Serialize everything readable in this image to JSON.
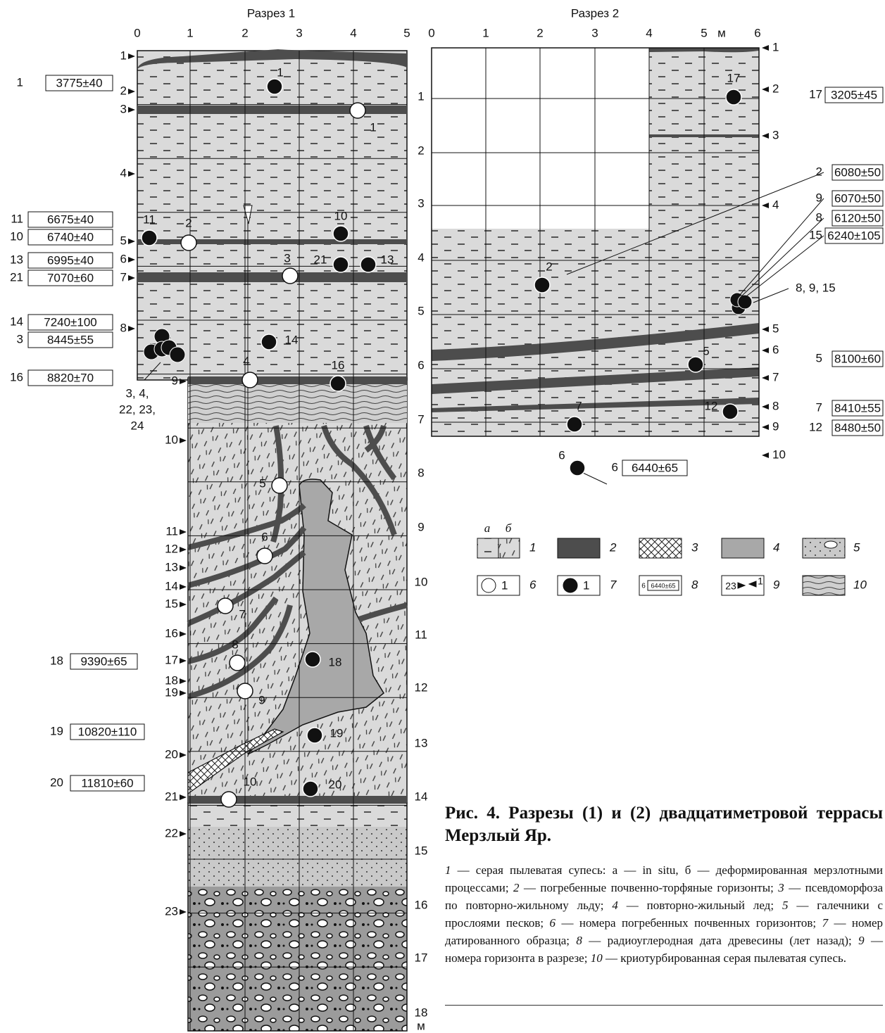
{
  "section1": {
    "title": "Разрез 1",
    "x_ticks": [
      "0",
      "1",
      "2",
      "3",
      "4",
      "5"
    ],
    "depth_ticks": [
      "1",
      "2",
      "3",
      "4",
      "5",
      "6",
      "7",
      "8",
      "9",
      "10",
      "11",
      "12",
      "13",
      "14",
      "15",
      "16",
      "17",
      "18"
    ],
    "unit": "м",
    "horizons": [
      "1",
      "2",
      "3",
      "4",
      "5",
      "6",
      "7",
      "8",
      "9",
      "10",
      "11",
      "12",
      "13",
      "14",
      "15",
      "16",
      "17",
      "18",
      "19",
      "20",
      "21",
      "22",
      "23"
    ],
    "soil_horizons": [
      "1",
      "2",
      "3",
      "4",
      "5",
      "6",
      "7",
      "8",
      "9",
      "10"
    ],
    "samples": [
      "1",
      "11",
      "10",
      "21",
      "13",
      "14",
      "16",
      "18",
      "19",
      "20"
    ],
    "dates": [
      {
        "sample": "1",
        "date": "3775±40"
      },
      {
        "sample": "11",
        "date": "6675±40"
      },
      {
        "sample": "10",
        "date": "6740±40"
      },
      {
        "sample": "13",
        "date": "6995±40"
      },
      {
        "sample": "21",
        "date": "7070±60"
      },
      {
        "sample": "14",
        "date": "7240±100"
      },
      {
        "sample": "3",
        "date": "8445±55"
      },
      {
        "sample": "16",
        "date": "8820±70"
      },
      {
        "sample": "18",
        "date": "9390±65"
      },
      {
        "sample": "19",
        "date": "10820±110"
      },
      {
        "sample": "20",
        "date": "11810±60"
      }
    ],
    "cluster_note": [
      "3, 4,",
      "22, 23,",
      "24"
    ]
  },
  "section2": {
    "title": "Разрез 2",
    "x_ticks": [
      "0",
      "1",
      "2",
      "3",
      "4",
      "5",
      "6"
    ],
    "unit": "м",
    "horizons": [
      "1",
      "2",
      "3",
      "4",
      "5",
      "6",
      "7",
      "8",
      "9",
      "10"
    ],
    "samples": [
      "17",
      "2",
      "5",
      "7",
      "12",
      "6"
    ],
    "dates": [
      {
        "sample": "17",
        "date": "3205±45"
      },
      {
        "sample": "2",
        "date": "6080±50"
      },
      {
        "sample": "9",
        "date": "6070±50"
      },
      {
        "sample": "8",
        "date": "6120±50"
      },
      {
        "sample": "15",
        "date": "6240±105"
      },
      {
        "sample": "5",
        "date": "8100±60"
      },
      {
        "sample": "7",
        "date": "8410±55"
      },
      {
        "sample": "12",
        "date": "8480±50"
      },
      {
        "sample": "6",
        "date": "6440±65"
      }
    ],
    "cluster_note": "8, 9, 15"
  },
  "legend": {
    "a": "а",
    "b": "б",
    "items": [
      "1",
      "2",
      "3",
      "4",
      "5",
      "6",
      "7",
      "8",
      "9",
      "10"
    ],
    "soil_example": "1",
    "sample_example": "1",
    "date_example_sample": "6",
    "date_example_date": "6440±65",
    "horizon_example_left": "23",
    "horizon_example_right": "1"
  },
  "caption": {
    "title": "Рис. 4. Разрезы (1) и (2) двадцатиметровой террасы Мерзлый Яр.",
    "items": [
      {
        "num": "1",
        "text": " — серая пылеватая супесь: а — in situ, б — деформированная мерзлотными процессами; "
      },
      {
        "num": "2",
        "text": " — погребенные почвенно-торфяные горизонты; "
      },
      {
        "num": "3",
        "text": " — псевдоморфоза по повторно-жильному льду; "
      },
      {
        "num": "4",
        "text": " — повторно-жильный лед; "
      },
      {
        "num": "5",
        "text": " — галечники с прослоями песков; "
      },
      {
        "num": "6",
        "text": " — номера погребенных почвенных горизонтов; "
      },
      {
        "num": "7",
        "text": " — номер датированного образца; "
      },
      {
        "num": "8",
        "text": " — радиоуглеродная дата древесины (лет назад); "
      },
      {
        "num": "9",
        "text": " — номера горизонта в разрезе; "
      },
      {
        "num": "10",
        "text": " — криотурбированная серая пылеватая супесь."
      }
    ]
  }
}
